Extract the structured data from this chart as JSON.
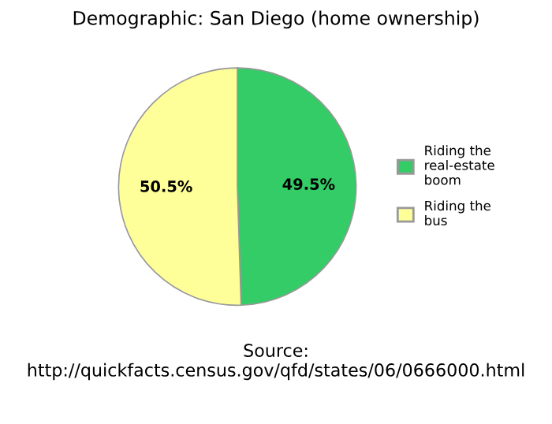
{
  "chart_data": {
    "type": "pie",
    "title": "Demographic: San Diego (home ownership)",
    "categories": [
      "Riding the\nreal-estate\nboom",
      "Riding the\nbus"
    ],
    "values": [
      49.5,
      50.5
    ],
    "colors": [
      "#33cc66",
      "#ffff99"
    ],
    "value_labels": [
      "49.5%",
      "50.5%"
    ],
    "legend": "right",
    "annotations": [
      "Source:\nhttp://quickfacts.census.gov/qfd/states/06/0666000.html"
    ]
  }
}
